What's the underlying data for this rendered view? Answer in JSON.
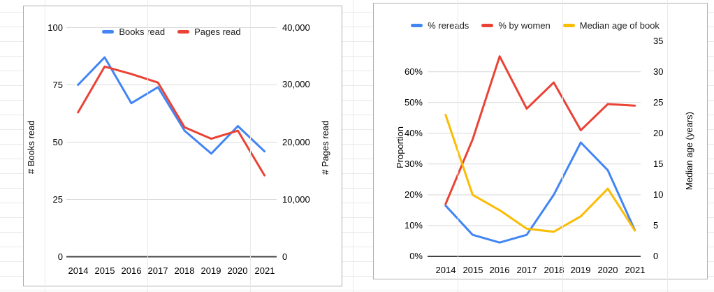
{
  "app": {
    "context": "spreadsheet-with-two-embedded-line-charts",
    "grid_color": "#e9e9e9",
    "palette": {
      "blue": "#4285F4",
      "red": "#EA4335",
      "yellow": "#FBBC04"
    }
  },
  "chart_data": [
    {
      "type": "line",
      "title": "",
      "categories": [
        "2014",
        "2015",
        "2016",
        "2017",
        "2018",
        "2019",
        "2020",
        "2021"
      ],
      "series": [
        {
          "name": "Books read",
          "color": "#4285F4",
          "axis": "left",
          "values": [
            75,
            87,
            67,
            74,
            55,
            45,
            57,
            46
          ]
        },
        {
          "name": "Pages read",
          "color": "#EA4335",
          "axis": "right",
          "values": [
            25200,
            33200,
            31900,
            30400,
            22600,
            20600,
            22000,
            14200
          ]
        }
      ],
      "left_axis": {
        "title": "# Books read",
        "min": 0,
        "max": 100,
        "tick_labels": [
          "100",
          "75",
          "50",
          "25",
          "0"
        ],
        "tick_values": [
          100,
          75,
          50,
          25,
          0
        ]
      },
      "right_axis": {
        "title": "# Pages read",
        "min": 0,
        "max": 40000,
        "tick_labels": [
          "40,000",
          "30,000",
          "20,000",
          "10,000",
          "0"
        ],
        "tick_values": [
          40000,
          30000,
          20000,
          10000,
          0
        ]
      },
      "legend_position": "top",
      "grid": true
    },
    {
      "type": "line",
      "title": "",
      "categories": [
        "2014",
        "2015",
        "2016",
        "2017",
        "2018",
        "2019",
        "2020",
        "2021"
      ],
      "series": [
        {
          "name": "% rereads",
          "color": "#4285F4",
          "axis": "left",
          "values": [
            16.5,
            7,
            4.5,
            7,
            20,
            37,
            28,
            8.5
          ]
        },
        {
          "name": "% by women",
          "color": "#EA4335",
          "axis": "left",
          "values": [
            17,
            38,
            65,
            48,
            56.5,
            41,
            49.5,
            49
          ]
        },
        {
          "name": "Median age of book",
          "color": "#FBBC04",
          "axis": "right",
          "values": [
            23,
            10,
            7.5,
            4.5,
            4,
            6.5,
            11,
            4.2
          ]
        }
      ],
      "left_axis": {
        "title": "Proportion",
        "min": 0,
        "max": 70,
        "unit": "%",
        "tick_labels": [
          "60%",
          "50%",
          "40%",
          "30%",
          "20%",
          "10%",
          "0%"
        ],
        "tick_values": [
          60,
          50,
          40,
          30,
          20,
          10,
          0
        ]
      },
      "right_axis": {
        "title": "Median age (years)",
        "min": 0,
        "max": 35,
        "tick_labels": [
          "35",
          "30",
          "25",
          "20",
          "15",
          "10",
          "5",
          "0"
        ],
        "tick_values": [
          35,
          30,
          25,
          20,
          15,
          10,
          5,
          0
        ]
      },
      "legend_position": "top",
      "grid": true
    }
  ]
}
